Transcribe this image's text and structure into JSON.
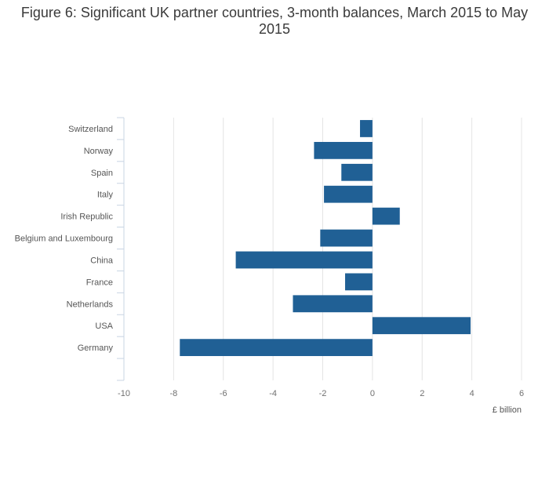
{
  "chart_data": {
    "type": "bar",
    "orientation": "horizontal",
    "title": "Figure 6: Significant UK partner countries, 3-month balances, March 2015 to May 2015",
    "categories": [
      "Switzerland",
      "Norway",
      "Spain",
      "Italy",
      "Irish Republic",
      "Belgium and Luxembourg",
      "China",
      "France",
      "Netherlands",
      "USA",
      "Germany"
    ],
    "values": [
      -0.5,
      -2.35,
      -1.25,
      -1.95,
      1.1,
      -2.1,
      -5.5,
      -1.1,
      -3.2,
      3.95,
      -7.75
    ],
    "xlabel": "£ billion",
    "ylabel": "",
    "xlim": [
      -10,
      6
    ],
    "xticks": [
      -10,
      -8,
      -6,
      -4,
      -2,
      0,
      2,
      4,
      6
    ],
    "grid": true,
    "bar_color": "#206095",
    "grid_color": "#e4e4e4"
  }
}
